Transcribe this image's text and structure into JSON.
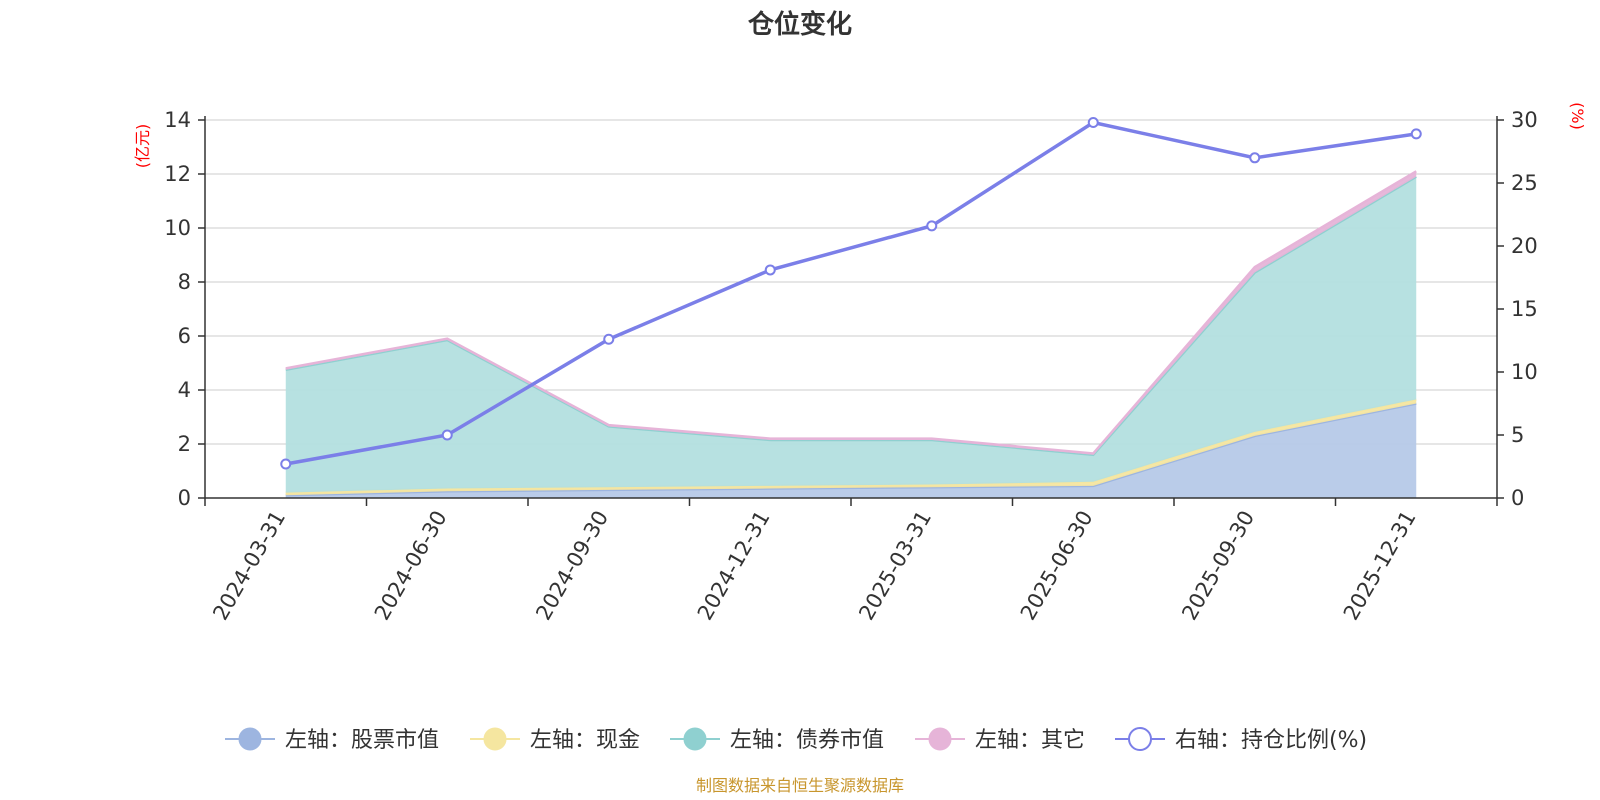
{
  "chart_data": {
    "type": "area",
    "title": "仓位变化",
    "categories": [
      "2024-03-31",
      "2024-06-30",
      "2024-09-30",
      "2024-12-31",
      "2025-03-31",
      "2025-06-30",
      "2025-09-30",
      "2025-12-31"
    ],
    "left_axis": {
      "unit": "(亿元)",
      "range": [
        0,
        14
      ],
      "ticks": [
        "0",
        "2",
        "4",
        "6",
        "8",
        "10",
        "12",
        "14"
      ]
    },
    "right_axis": {
      "unit": "(%)",
      "range": [
        0,
        30
      ],
      "ticks": [
        "0",
        "5",
        "10",
        "15",
        "20",
        "25",
        "30"
      ]
    },
    "stacked_series": [
      {
        "legend": "左轴：股票市值",
        "color": "#9db5e0",
        "fill": "#b6c9e8",
        "values": [
          0.1,
          0.25,
          0.3,
          0.35,
          0.4,
          0.45,
          2.3,
          3.5
        ]
      },
      {
        "legend": "左轴：现金",
        "color": "#f5e6a0",
        "fill": "#f5e6a0",
        "values": [
          0.1,
          0.1,
          0.1,
          0.1,
          0.1,
          0.15,
          0.15,
          0.15
        ]
      },
      {
        "legend": "左轴：债券市值",
        "color": "#8fd0d0",
        "fill": "#b3dfdf",
        "values": [
          4.55,
          5.5,
          2.25,
          1.7,
          1.65,
          1.0,
          5.9,
          8.25
        ]
      },
      {
        "legend": "左轴：其它",
        "color": "#e6b4d8",
        "fill": "#e6b4d8",
        "values": [
          0.05,
          0.05,
          0.05,
          0.05,
          0.05,
          0.05,
          0.2,
          0.2
        ]
      }
    ],
    "line_series": {
      "legend": "右轴：持仓比例(%)",
      "color": "#7b7fe8",
      "axis": "right",
      "values": [
        2.7,
        5.0,
        12.6,
        18.1,
        21.6,
        29.8,
        27.0,
        28.9
      ]
    },
    "grid": true,
    "legend_position": "bottom",
    "source": "制图数据来自恒生聚源数据库"
  }
}
